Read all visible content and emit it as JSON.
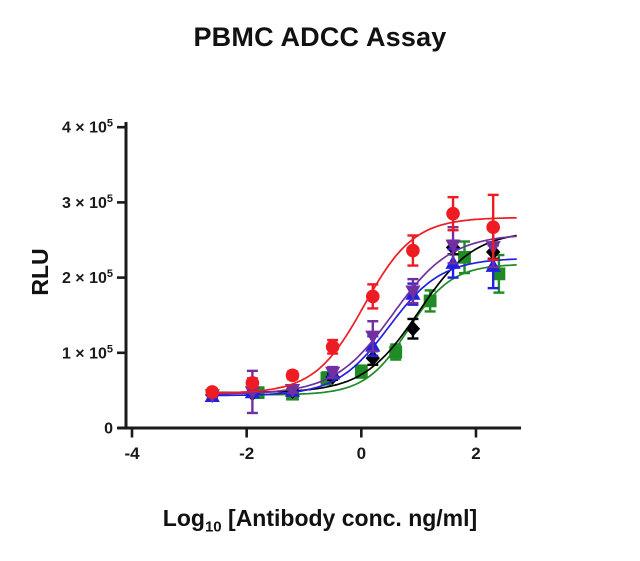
{
  "title": "PBMC ADCC Assay",
  "chart_data": {
    "type": "scatter",
    "title": "PBMC ADCC Assay",
    "xlabel": "Log10 [Antibody conc. ng/ml]",
    "xlabel_parts": {
      "base": "Log",
      "sub": "10",
      "rest": " [Antibody conc. ng/ml]"
    },
    "ylabel": "RLU",
    "xlim": [
      -4,
      2.75
    ],
    "ylim": [
      0,
      400000
    ],
    "grid": false,
    "legend": "none",
    "x_ticks": [
      {
        "value": -4,
        "label": "-4"
      },
      {
        "value": -2,
        "label": "-2"
      },
      {
        "value": 0,
        "label": "0"
      },
      {
        "value": 2,
        "label": "2"
      }
    ],
    "y_ticks": [
      {
        "value": 0,
        "label": "0"
      },
      {
        "value": 100000,
        "label": "1 × 10^5"
      },
      {
        "value": 200000,
        "label": "2 × 10^5"
      },
      {
        "value": 300000,
        "label": "3 × 10^5"
      },
      {
        "value": 400000,
        "label": "4 × 10^5"
      }
    ],
    "curve_model": "four-parameter logistic: y = bottom + (top-bottom)/(1+10^(hill*(logec50-x)))",
    "series": [
      {
        "name": "green-squares",
        "marker": "square",
        "color": "#1f8b24",
        "x": [
          -1.8,
          -1.2,
          -0.6,
          0.0,
          0.6,
          1.2,
          1.8,
          2.4
        ],
        "y": [
          47000,
          45000,
          66000,
          75000,
          101000,
          169000,
          227000,
          205000
        ],
        "err": [
          4000,
          5000,
          8000,
          8000,
          10000,
          14000,
          21000,
          25000
        ],
        "fit": {
          "bottom": 44000,
          "top": 218000,
          "logec50": 0.82,
          "hill": 1.15,
          "x_start": -1.85,
          "x_end": 2.72
        }
      },
      {
        "name": "black-diamonds",
        "marker": "diamond",
        "color": "#000000",
        "x": [
          -2.6,
          -1.9,
          -1.2,
          -0.5,
          0.2,
          0.9,
          1.6,
          2.3
        ],
        "y": [
          44000,
          46000,
          49000,
          68000,
          93000,
          132000,
          240000,
          234000
        ],
        "err": [
          2000,
          3000,
          3000,
          4000,
          9000,
          13000,
          9000,
          9000
        ],
        "fit": {
          "bottom": 47000,
          "top": 262000,
          "logec50": 1.0,
          "hill": 0.9,
          "x_start": -2.65,
          "x_end": 2.72
        }
      },
      {
        "name": "blue-up-triangles",
        "marker": "triangle-up",
        "color": "#2020e0",
        "x": [
          -2.6,
          -1.9,
          -1.2,
          -0.5,
          0.2,
          0.9,
          1.6,
          2.3
        ],
        "y": [
          42000,
          47000,
          49000,
          72000,
          109000,
          178000,
          219000,
          215000
        ],
        "err": [
          4000,
          5000,
          4000,
          6000,
          13000,
          14000,
          19000,
          29000
        ],
        "fit": {
          "bottom": 43000,
          "top": 226000,
          "logec50": 0.48,
          "hill": 0.95,
          "x_start": -2.65,
          "x_end": 2.72
        }
      },
      {
        "name": "purple-down-triangles",
        "marker": "triangle-down",
        "color": "#7030a0",
        "x": [
          -2.6,
          -1.9,
          -1.2,
          -0.5,
          0.2,
          0.9,
          1.6,
          2.3
        ],
        "y": [
          44000,
          48000,
          51000,
          74000,
          122000,
          182000,
          243000,
          241000
        ],
        "err": [
          3000,
          28000,
          4000,
          7000,
          20000,
          16000,
          24000,
          27000
        ],
        "fit": {
          "bottom": 45000,
          "top": 258000,
          "logec50": 0.55,
          "hill": 0.85,
          "x_start": -2.65,
          "x_end": 2.72
        }
      },
      {
        "name": "red-circles",
        "marker": "circle",
        "color": "#ee1b22",
        "x": [
          -2.6,
          -1.9,
          -1.2,
          -0.5,
          0.2,
          0.9,
          1.6,
          2.3
        ],
        "y": [
          48000,
          60000,
          70000,
          108000,
          175000,
          236000,
          285000,
          267000
        ],
        "err": [
          4000,
          6000,
          5000,
          9000,
          16000,
          20000,
          22000,
          43000
        ],
        "fit": {
          "bottom": 46000,
          "top": 280000,
          "logec50": 0.05,
          "hill": 1.0,
          "x_start": -2.65,
          "x_end": 2.72
        }
      }
    ]
  }
}
